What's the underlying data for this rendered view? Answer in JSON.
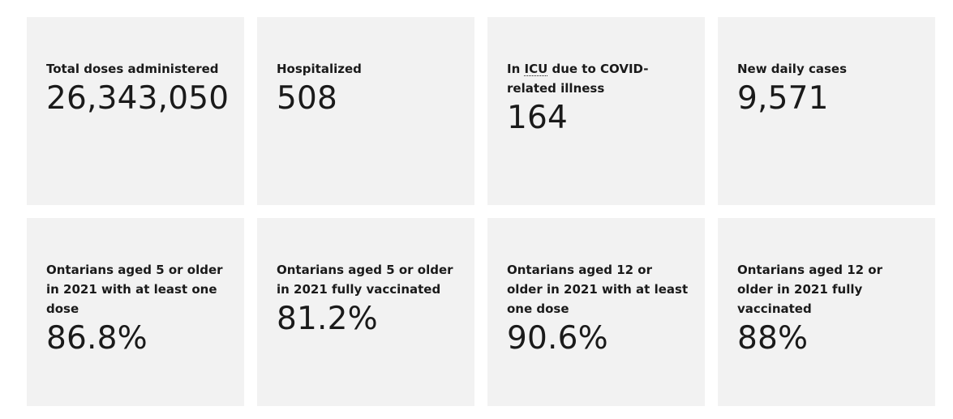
{
  "stats": [
    {
      "label_before": "Total doses administered",
      "abbr": "",
      "label_after": "",
      "value": "26,343,050"
    },
    {
      "label_before": "Hospitalized",
      "abbr": "",
      "label_after": "",
      "value": "508"
    },
    {
      "label_before": "In ",
      "abbr": "ICU",
      "label_after": " due to COVID-related illness",
      "value": "164"
    },
    {
      "label_before": "New daily cases",
      "abbr": "",
      "label_after": "",
      "value": "9,571"
    },
    {
      "label_before": "Ontarians aged 5 or older in 2021 with at least one dose",
      "abbr": "",
      "label_after": "",
      "value": "86.8%"
    },
    {
      "label_before": "Ontarians aged 5 or older in 2021 fully vaccinated",
      "abbr": "",
      "label_after": "",
      "value": "81.2%"
    },
    {
      "label_before": "Ontarians aged 12 or older in 2021 with at least one dose",
      "abbr": "",
      "label_after": "",
      "value": "90.6%"
    },
    {
      "label_before": "Ontarians aged 12 or older in 2021 fully vaccinated",
      "abbr": "",
      "label_after": "",
      "value": "88%"
    }
  ]
}
